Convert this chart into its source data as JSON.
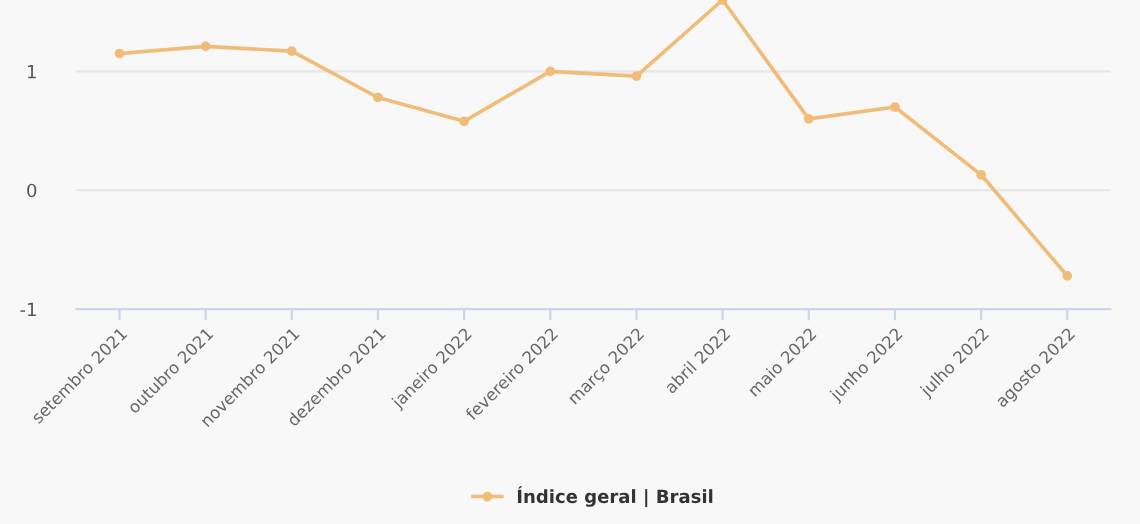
{
  "chart_data": {
    "type": "line",
    "categories": [
      "setembro 2021",
      "outubro 2021",
      "novembro 2021",
      "dezembro 2021",
      "janeiro 2022",
      "fevereiro 2022",
      "março 2022",
      "abril 2022",
      "maio 2022",
      "junho 2022",
      "julho 2022",
      "agosto 2022"
    ],
    "series": [
      {
        "name": "Índice geral | Brasil",
        "color": "#f0bc78",
        "values": [
          1.15,
          1.21,
          1.17,
          0.78,
          0.58,
          1.0,
          0.96,
          1.6,
          0.6,
          0.7,
          0.13,
          -0.72
        ]
      }
    ],
    "ylim": [
      -1,
      1.6
    ],
    "yticks": [
      -1,
      0,
      1
    ],
    "grid": "y",
    "legend": "bottom",
    "marker": "circle",
    "line_style": "solid"
  }
}
